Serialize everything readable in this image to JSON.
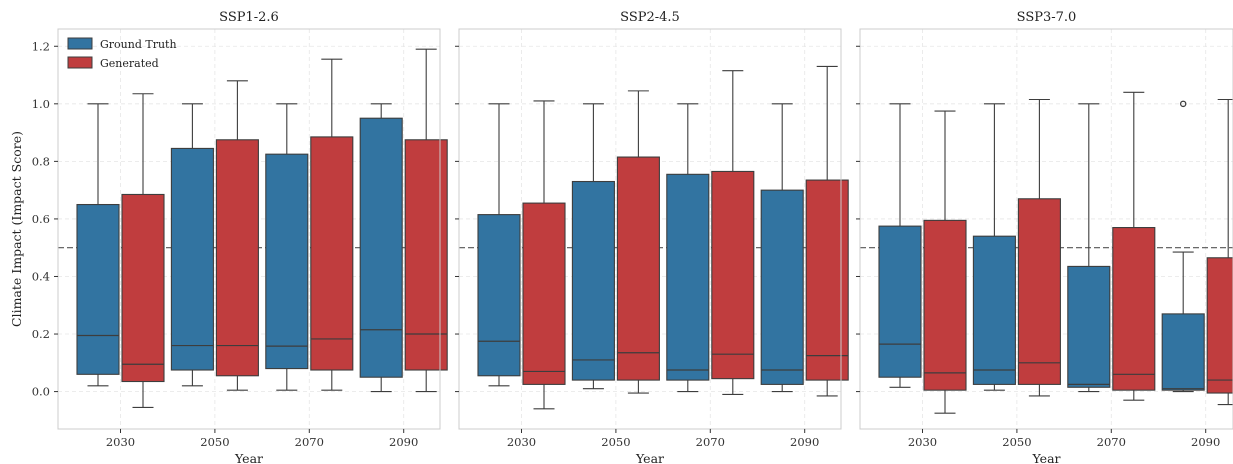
{
  "chart_data": {
    "type": "box",
    "ylabel": "Climate Impact (Impact Score)",
    "xlabel": "Year",
    "ylim": [
      -0.13,
      1.26
    ],
    "yticks": [
      0.0,
      0.2,
      0.4,
      0.6,
      0.8,
      1.0,
      1.2
    ],
    "ytick_labels": [
      "0.0",
      "0.2",
      "0.4",
      "0.6",
      "0.8",
      "1.0",
      "1.2"
    ],
    "grid": true,
    "reference_line": 0.5,
    "legend": {
      "placement": "top-left",
      "entries": [
        {
          "label": "Ground Truth",
          "color": "#3274a1"
        },
        {
          "label": "Generated",
          "color": "#c03d3e"
        }
      ]
    },
    "categories": [
      "2030",
      "2050",
      "2070",
      "2090"
    ],
    "panels": [
      {
        "title": "SSP1-2.6",
        "boxes": [
          {
            "year": "2030",
            "series": "Ground Truth",
            "whislo": 0.02,
            "q1": 0.06,
            "med": 0.195,
            "q3": 0.65,
            "whishi": 1.0,
            "fliers": []
          },
          {
            "year": "2030",
            "series": "Generated",
            "whislo": -0.055,
            "q1": 0.035,
            "med": 0.095,
            "q3": 0.685,
            "whishi": 1.035,
            "fliers": []
          },
          {
            "year": "2050",
            "series": "Ground Truth",
            "whislo": 0.02,
            "q1": 0.075,
            "med": 0.16,
            "q3": 0.845,
            "whishi": 1.0,
            "fliers": []
          },
          {
            "year": "2050",
            "series": "Generated",
            "whislo": 0.005,
            "q1": 0.055,
            "med": 0.16,
            "q3": 0.875,
            "whishi": 1.08,
            "fliers": []
          },
          {
            "year": "2070",
            "series": "Ground Truth",
            "whislo": 0.005,
            "q1": 0.08,
            "med": 0.158,
            "q3": 0.825,
            "whishi": 1.0,
            "fliers": []
          },
          {
            "year": "2070",
            "series": "Generated",
            "whislo": 0.005,
            "q1": 0.075,
            "med": 0.183,
            "q3": 0.885,
            "whishi": 1.155,
            "fliers": []
          },
          {
            "year": "2090",
            "series": "Ground Truth",
            "whislo": 0.0,
            "q1": 0.05,
            "med": 0.215,
            "q3": 0.95,
            "whishi": 1.0,
            "fliers": []
          },
          {
            "year": "2090",
            "series": "Generated",
            "whislo": 0.0,
            "q1": 0.075,
            "med": 0.2,
            "q3": 0.875,
            "whishi": 1.19,
            "fliers": []
          }
        ]
      },
      {
        "title": "SSP2-4.5",
        "boxes": [
          {
            "year": "2030",
            "series": "Ground Truth",
            "whislo": 0.02,
            "q1": 0.055,
            "med": 0.175,
            "q3": 0.615,
            "whishi": 1.0,
            "fliers": []
          },
          {
            "year": "2030",
            "series": "Generated",
            "whislo": -0.06,
            "q1": 0.025,
            "med": 0.07,
            "q3": 0.655,
            "whishi": 1.01,
            "fliers": []
          },
          {
            "year": "2050",
            "series": "Ground Truth",
            "whislo": 0.01,
            "q1": 0.04,
            "med": 0.11,
            "q3": 0.73,
            "whishi": 1.0,
            "fliers": []
          },
          {
            "year": "2050",
            "series": "Generated",
            "whislo": -0.005,
            "q1": 0.04,
            "med": 0.135,
            "q3": 0.815,
            "whishi": 1.045,
            "fliers": []
          },
          {
            "year": "2070",
            "series": "Ground Truth",
            "whislo": 0.0,
            "q1": 0.04,
            "med": 0.075,
            "q3": 0.755,
            "whishi": 1.0,
            "fliers": []
          },
          {
            "year": "2070",
            "series": "Generated",
            "whislo": -0.01,
            "q1": 0.045,
            "med": 0.13,
            "q3": 0.765,
            "whishi": 1.115,
            "fliers": []
          },
          {
            "year": "2090",
            "series": "Ground Truth",
            "whislo": 0.0,
            "q1": 0.025,
            "med": 0.075,
            "q3": 0.7,
            "whishi": 1.0,
            "fliers": []
          },
          {
            "year": "2090",
            "series": "Generated",
            "whislo": -0.015,
            "q1": 0.04,
            "med": 0.125,
            "q3": 0.735,
            "whishi": 1.13,
            "fliers": []
          }
        ]
      },
      {
        "title": "SSP3-7.0",
        "boxes": [
          {
            "year": "2030",
            "series": "Ground Truth",
            "whislo": 0.015,
            "q1": 0.05,
            "med": 0.165,
            "q3": 0.575,
            "whishi": 1.0,
            "fliers": []
          },
          {
            "year": "2030",
            "series": "Generated",
            "whislo": -0.075,
            "q1": 0.005,
            "med": 0.065,
            "q3": 0.595,
            "whishi": 0.975,
            "fliers": []
          },
          {
            "year": "2050",
            "series": "Ground Truth",
            "whislo": 0.005,
            "q1": 0.025,
            "med": 0.075,
            "q3": 0.54,
            "whishi": 1.0,
            "fliers": []
          },
          {
            "year": "2050",
            "series": "Generated",
            "whislo": -0.015,
            "q1": 0.025,
            "med": 0.1,
            "q3": 0.67,
            "whishi": 1.015,
            "fliers": []
          },
          {
            "year": "2070",
            "series": "Ground Truth",
            "whislo": 0.0,
            "q1": 0.015,
            "med": 0.025,
            "q3": 0.435,
            "whishi": 1.0,
            "fliers": []
          },
          {
            "year": "2070",
            "series": "Generated",
            "whislo": -0.03,
            "q1": 0.005,
            "med": 0.06,
            "q3": 0.57,
            "whishi": 1.04,
            "fliers": []
          },
          {
            "year": "2090",
            "series": "Ground Truth",
            "whislo": 0.0,
            "q1": 0.005,
            "med": 0.01,
            "q3": 0.27,
            "whishi": 0.485,
            "fliers": [
              1.0
            ]
          },
          {
            "year": "2090",
            "series": "Generated",
            "whislo": -0.045,
            "q1": -0.005,
            "med": 0.04,
            "q3": 0.465,
            "whishi": 1.015,
            "fliers": []
          }
        ]
      }
    ]
  }
}
